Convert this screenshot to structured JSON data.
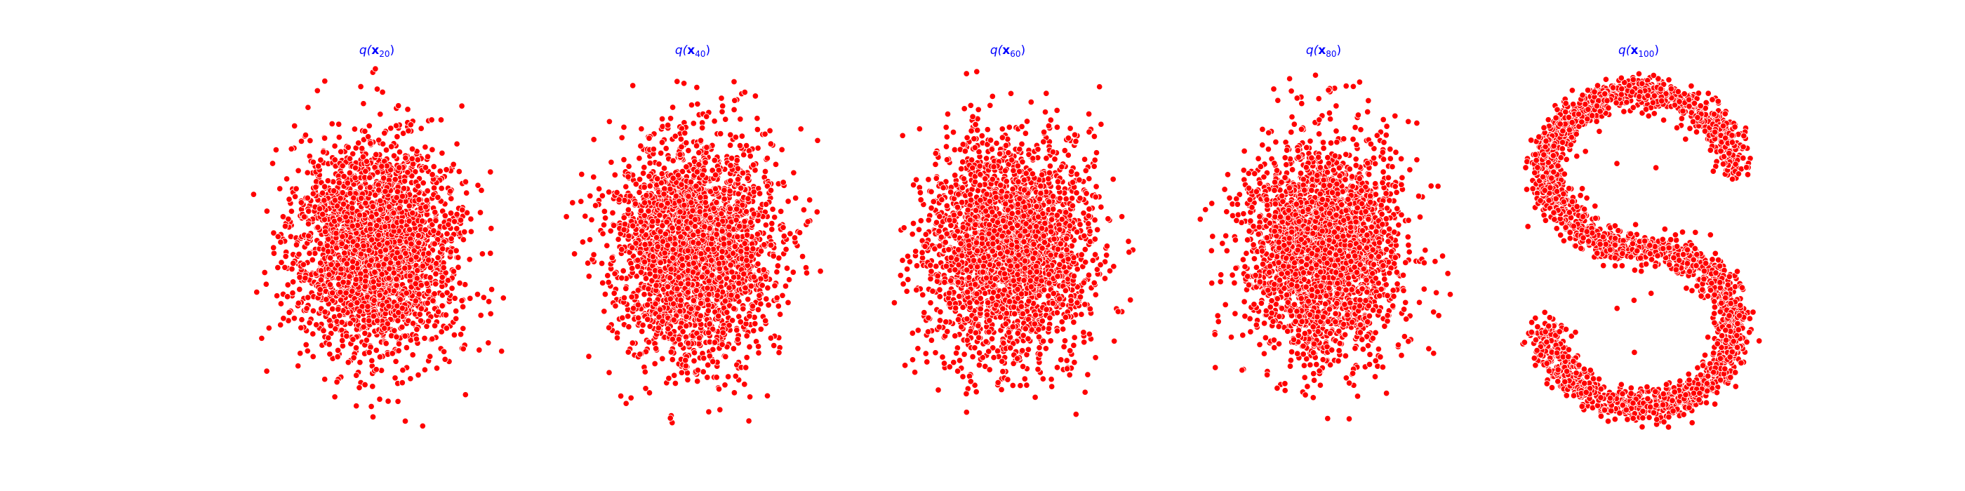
{
  "figure": {
    "background": "#ffffff",
    "marker_color": "#ff0000",
    "marker_edge_color": "#ffffff",
    "title_color": "#0000ff"
  },
  "chart_data": [
    {
      "type": "scatter",
      "title": "q(x20)",
      "title_parts": {
        "prefix": "q(",
        "var": "x",
        "subscript": "20",
        "suffix": ")"
      },
      "axes_visible": false,
      "grid": false,
      "legend": "none",
      "shape": "blob",
      "x_range": [
        -2.3,
        2.3
      ],
      "y_range": [
        -2.9,
        2.7
      ],
      "n_points": 2600,
      "seed": 20
    },
    {
      "type": "scatter",
      "title": "q(x40)",
      "title_parts": {
        "prefix": "q(",
        "var": "x",
        "subscript": "40",
        "suffix": ")"
      },
      "axes_visible": false,
      "grid": false,
      "legend": "none",
      "shape": "blob",
      "x_range": [
        -2.2,
        2.2
      ],
      "y_range": [
        -2.8,
        2.8
      ],
      "n_points": 2600,
      "seed": 40
    },
    {
      "type": "scatter",
      "title": "q(x60)",
      "title_parts": {
        "prefix": "q(",
        "var": "x",
        "subscript": "60",
        "suffix": ")"
      },
      "axes_visible": false,
      "grid": false,
      "legend": "none",
      "shape": "blob",
      "x_range": [
        -1.8,
        1.8
      ],
      "y_range": [
        -2.4,
        2.4
      ],
      "n_points": 2600,
      "seed": 60
    },
    {
      "type": "scatter",
      "title": "q(x80)",
      "title_parts": {
        "prefix": "q(",
        "var": "x",
        "subscript": "80",
        "suffix": ")"
      },
      "axes_visible": false,
      "grid": false,
      "legend": "none",
      "shape": "blob",
      "x_range": [
        -2.0,
        2.0
      ],
      "y_range": [
        -2.6,
        2.6
      ],
      "n_points": 2600,
      "seed": 80
    },
    {
      "type": "scatter",
      "title": "q(x100)",
      "title_parts": {
        "prefix": "q(",
        "var": "x",
        "subscript": "100",
        "suffix": ")"
      },
      "axes_visible": false,
      "grid": false,
      "legend": "none",
      "shape": "s-curve",
      "x_range": [
        -1.5,
        1.5
      ],
      "y_range": [
        -2.2,
        2.2
      ],
      "n_points": 2600,
      "seed": 100
    }
  ]
}
